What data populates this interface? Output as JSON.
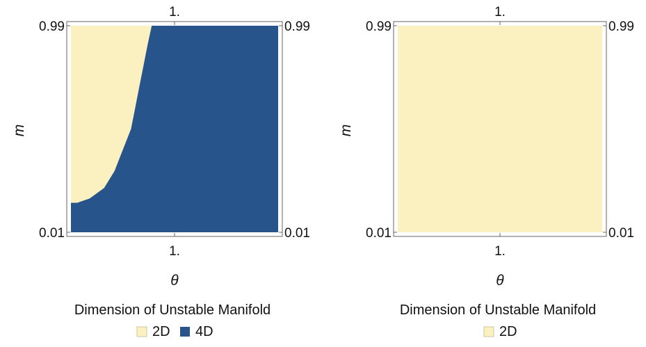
{
  "colors": {
    "region_2d": "#FBF0BF",
    "region_4d": "#27548B"
  },
  "chart_data": [
    {
      "type": "heatmap",
      "xlabel": "θ",
      "ylabel": "m",
      "x_ticks": [
        "1."
      ],
      "y_ticks": [
        "0.01",
        "0.99"
      ],
      "ylim": [
        0.01,
        0.99
      ],
      "legend_title": "Dimension of Unstable Manifold",
      "legend": [
        {
          "label": "2D",
          "color": "#FBF0BF"
        },
        {
          "label": "4D",
          "color": "#27548B"
        }
      ],
      "boundary": [
        {
          "x": 0.39,
          "m": 0.99
        },
        {
          "x": 0.37,
          "m": 0.9
        },
        {
          "x": 0.35,
          "m": 0.8
        },
        {
          "x": 0.33,
          "m": 0.7
        },
        {
          "x": 0.31,
          "m": 0.6
        },
        {
          "x": 0.29,
          "m": 0.5
        },
        {
          "x": 0.25,
          "m": 0.4
        },
        {
          "x": 0.21,
          "m": 0.3
        },
        {
          "x": 0.16,
          "m": 0.22
        },
        {
          "x": 0.09,
          "m": 0.17
        },
        {
          "x": 0.03,
          "m": 0.15
        },
        {
          "x": 0.0,
          "m": 0.15
        }
      ]
    },
    {
      "type": "heatmap",
      "xlabel": "θ",
      "ylabel": "m",
      "x_ticks": [
        "1."
      ],
      "y_ticks": [
        "0.01",
        "0.99"
      ],
      "ylim": [
        0.01,
        0.99
      ],
      "legend_title": "Dimension of Unstable Manifold",
      "legend": [
        {
          "label": "2D",
          "color": "#FBF0BF"
        }
      ]
    }
  ]
}
